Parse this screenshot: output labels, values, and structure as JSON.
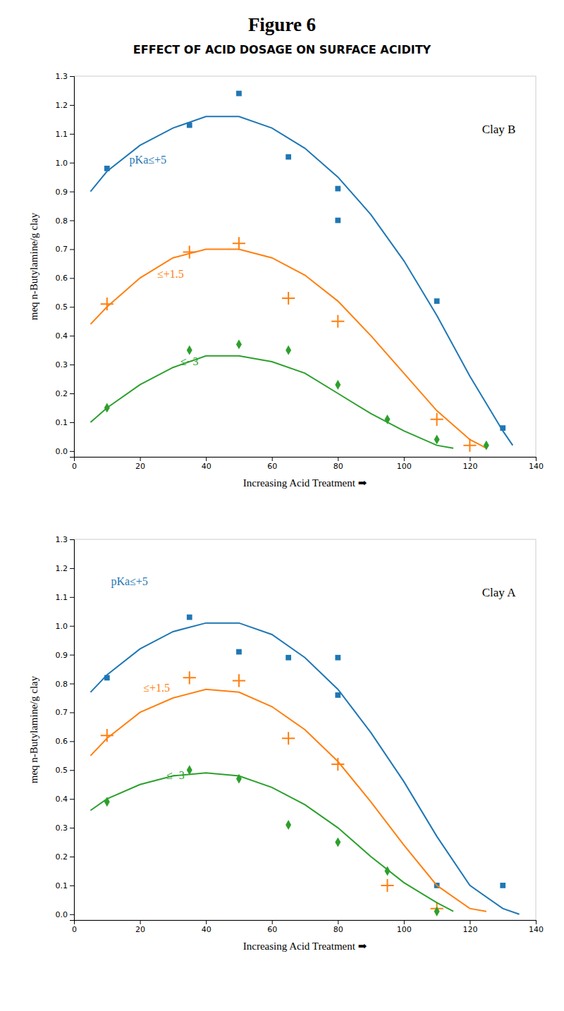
{
  "chart_data": [
    {
      "type": "line",
      "title": "Figure 6",
      "subtitle": "EFFECT OF ACID DOSAGE ON SURFACE ACIDITY",
      "xlabel": "Increasing Acid Treatment  ➡",
      "ylabel": "meq n-Butylamine/g clay",
      "xlim": [
        0,
        140
      ],
      "ylim": [
        -0.02,
        1.3
      ],
      "xticks": [
        0,
        20,
        40,
        60,
        80,
        100,
        120,
        140
      ],
      "yticks": [
        {
          "value": 0,
          "label": "0.0"
        },
        0.1,
        0.2,
        0.3,
        0.4,
        0.5,
        0.6,
        0.7,
        0.8,
        0.9,
        {
          "value": 1.0,
          "label": "1.0"
        },
        1.1,
        1.2,
        1.3
      ],
      "grid": false,
      "annotations": [
        {
          "text": "Clay B"
        }
      ],
      "series": [
        {
          "name": "pKa≤+5",
          "type": "line",
          "x": [
            5,
            10,
            20,
            30,
            40,
            50,
            60,
            70,
            80,
            90,
            100,
            110,
            120,
            130,
            133
          ],
          "values": [
            0.9,
            0.97,
            1.06,
            1.12,
            1.16,
            1.16,
            1.12,
            1.05,
            0.95,
            0.82,
            0.66,
            0.47,
            0.26,
            0.07,
            0.02
          ]
        },
        {
          "type": "scatter",
          "marker": "square",
          "x": [
            10,
            35,
            50,
            65,
            80,
            80,
            110,
            130
          ],
          "values": [
            0.98,
            1.13,
            1.24,
            1.02,
            0.91,
            0.8,
            0.52,
            0.08
          ]
        },
        {
          "name": "≤+1.5",
          "type": "line",
          "x": [
            5,
            10,
            20,
            30,
            40,
            50,
            60,
            70,
            80,
            90,
            100,
            110,
            120,
            125
          ],
          "values": [
            0.44,
            0.5,
            0.6,
            0.67,
            0.7,
            0.7,
            0.67,
            0.61,
            0.52,
            0.4,
            0.27,
            0.14,
            0.04,
            0.01
          ]
        },
        {
          "type": "scatter",
          "marker": "plus",
          "x": [
            10,
            35,
            50,
            65,
            80,
            110,
            120
          ],
          "values": [
            0.51,
            0.69,
            0.72,
            0.53,
            0.45,
            0.11,
            0.02
          ]
        },
        {
          "name": "≤−3",
          "type": "line",
          "x": [
            5,
            10,
            20,
            30,
            40,
            50,
            60,
            70,
            80,
            90,
            100,
            110,
            115
          ],
          "values": [
            0.1,
            0.15,
            0.23,
            0.29,
            0.33,
            0.33,
            0.31,
            0.27,
            0.2,
            0.13,
            0.07,
            0.02,
            0.01
          ]
        },
        {
          "type": "scatter",
          "marker": "diamond",
          "x": [
            10,
            35,
            50,
            65,
            80,
            95,
            110,
            125
          ],
          "values": [
            0.15,
            0.35,
            0.37,
            0.35,
            0.23,
            0.11,
            0.04,
            0.02
          ]
        }
      ]
    },
    {
      "type": "line",
      "xlabel": "Increasing Acid Treatment  ➡",
      "ylabel": "meq n-Butylamine/g clay",
      "xlim": [
        0,
        140
      ],
      "ylim": [
        -0.02,
        1.3
      ],
      "xticks": [
        0,
        20,
        40,
        60,
        80,
        100,
        120,
        140
      ],
      "yticks": [
        {
          "value": 0,
          "label": "0.0"
        },
        0.1,
        0.2,
        0.3,
        0.4,
        0.5,
        0.6,
        0.7,
        0.8,
        0.9,
        {
          "value": 1.0,
          "label": "1.0"
        },
        1.1,
        1.2,
        1.3
      ],
      "grid": false,
      "annotations": [
        {
          "text": "Clay A"
        }
      ],
      "series": [
        {
          "name": "pKa≤+5",
          "type": "line",
          "x": [
            5,
            10,
            20,
            30,
            40,
            50,
            60,
            70,
            80,
            90,
            100,
            110,
            120,
            130,
            135
          ],
          "values": [
            0.77,
            0.83,
            0.92,
            0.98,
            1.01,
            1.01,
            0.97,
            0.89,
            0.78,
            0.63,
            0.46,
            0.27,
            0.1,
            0.02,
            0.0
          ]
        },
        {
          "type": "scatter",
          "marker": "square",
          "x": [
            10,
            35,
            50,
            65,
            80,
            80,
            110,
            130
          ],
          "values": [
            0.82,
            1.03,
            0.91,
            0.89,
            0.89,
            0.76,
            0.1,
            0.1
          ]
        },
        {
          "name": "≤+1.5",
          "type": "line",
          "x": [
            5,
            10,
            20,
            30,
            40,
            50,
            60,
            70,
            80,
            90,
            100,
            110,
            120,
            125
          ],
          "values": [
            0.55,
            0.61,
            0.7,
            0.75,
            0.78,
            0.77,
            0.72,
            0.64,
            0.53,
            0.39,
            0.24,
            0.1,
            0.02,
            0.01
          ]
        },
        {
          "type": "scatter",
          "marker": "plus",
          "x": [
            10,
            35,
            50,
            65,
            80,
            95,
            110
          ],
          "values": [
            0.62,
            0.82,
            0.81,
            0.61,
            0.52,
            0.1,
            0.02
          ]
        },
        {
          "name": "≤−3",
          "type": "line",
          "x": [
            5,
            10,
            20,
            30,
            40,
            50,
            60,
            70,
            80,
            90,
            100,
            110,
            115
          ],
          "values": [
            0.36,
            0.4,
            0.45,
            0.48,
            0.49,
            0.48,
            0.44,
            0.38,
            0.3,
            0.2,
            0.11,
            0.04,
            0.01
          ]
        },
        {
          "type": "scatter",
          "marker": "diamond",
          "x": [
            10,
            35,
            50,
            65,
            80,
            95,
            110
          ],
          "values": [
            0.39,
            0.5,
            0.47,
            0.31,
            0.25,
            0.15,
            0.01
          ]
        }
      ]
    }
  ]
}
